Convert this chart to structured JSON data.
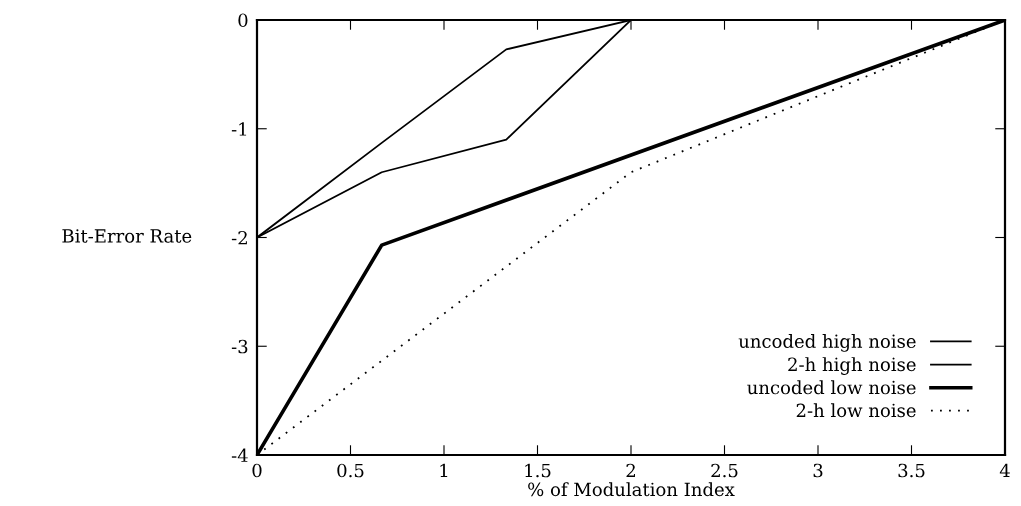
{
  "chart_data": {
    "type": "line",
    "xlabel": "% of Modulation Index",
    "ylabel": "Bit-Error Rate",
    "xlim": [
      0,
      4
    ],
    "xticks": [
      0,
      0.5,
      1,
      1.5,
      2,
      2.5,
      3,
      3.5,
      4
    ],
    "ylim": [
      -4,
      0
    ],
    "yticks": [
      -4,
      -3,
      -2,
      -1,
      0
    ],
    "grid": false,
    "legend": "bottom right",
    "marker": "none",
    "series": [
      {
        "name": "uncoded high noise",
        "color": "#000000",
        "x": [
          0,
          0.667,
          1.333,
          2
        ],
        "values": [
          -2,
          -1.13,
          -0.27,
          0
        ],
        "line_style": "solid"
      },
      {
        "name": "2-h high noise",
        "color": "#000000",
        "x": [
          0,
          0.667,
          1.333,
          2
        ],
        "values": [
          -2,
          -1.4,
          -1.1,
          0
        ],
        "line_style": "solid"
      },
      {
        "name": "uncoded low noise",
        "color": "#000000",
        "x": [
          0,
          0.667,
          4
        ],
        "values": [
          -4,
          -2.07,
          0
        ],
        "line_style": "solid"
      },
      {
        "name": "2-h low noise",
        "color": "#000000",
        "x": [
          0,
          2,
          4
        ],
        "values": [
          -4,
          -1.4,
          0
        ],
        "line_style": "dotted"
      }
    ]
  }
}
